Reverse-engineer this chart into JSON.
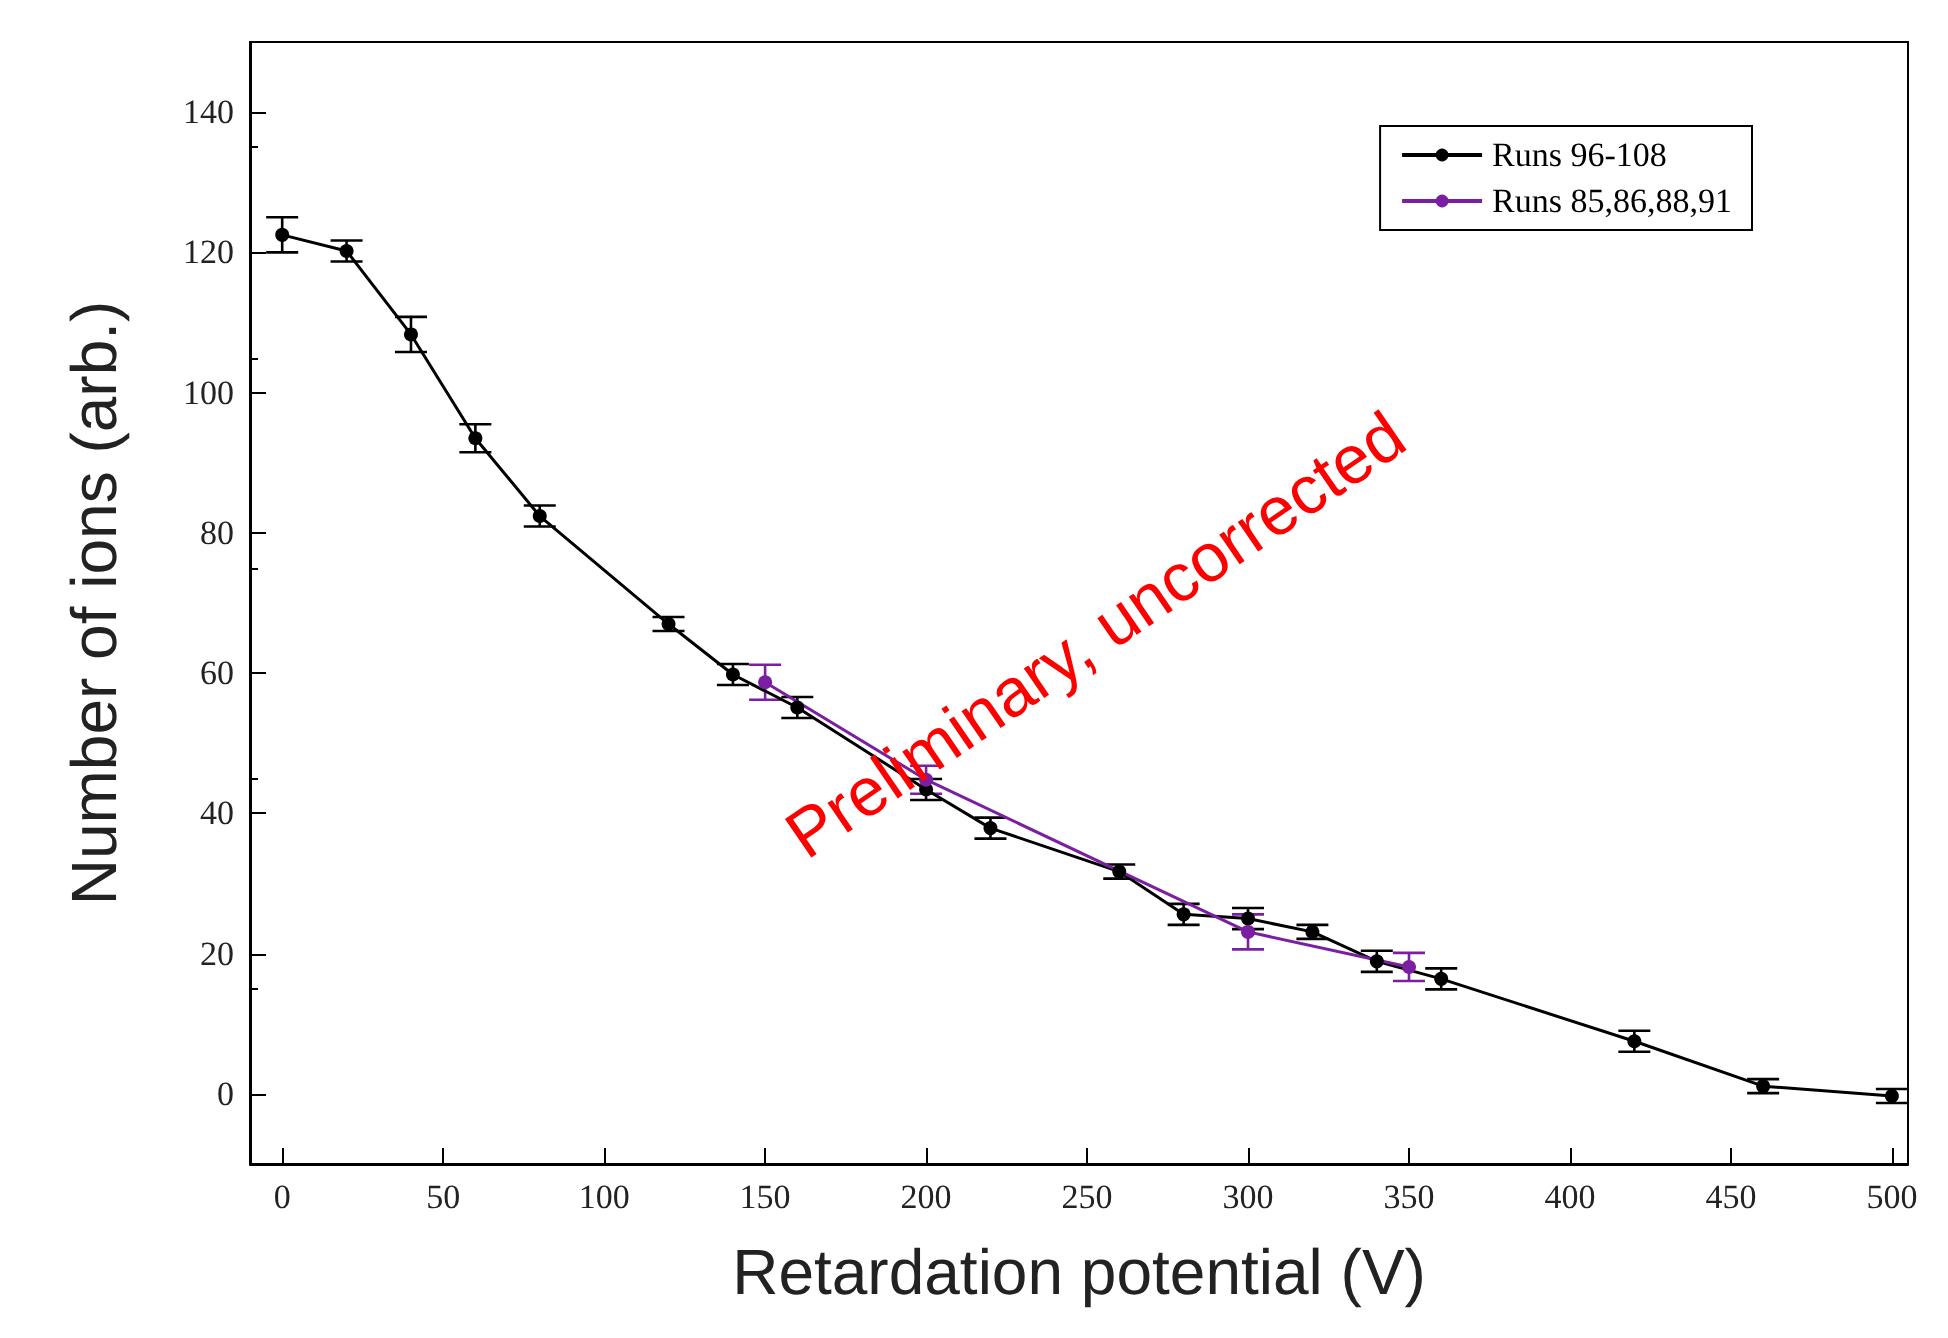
{
  "chart_data": {
    "type": "line",
    "xlabel": "Retardation potential (V)",
    "ylabel": "Number of ions (arb.)",
    "annotations": [
      "Preliminary, uncorrected"
    ],
    "xlim": [
      -10,
      505
    ],
    "xticks": [
      0,
      50,
      100,
      150,
      200,
      250,
      300,
      350,
      400,
      450,
      500
    ],
    "ylim": [
      -10,
      150
    ],
    "yticks": [
      0,
      20,
      40,
      60,
      80,
      100,
      120,
      140
    ],
    "grid": false,
    "legend": "top right",
    "marker": "circle",
    "line_style": "solid",
    "series": [
      {
        "name": "Runs 96-108",
        "color": "#000000",
        "x": [
          0,
          20,
          40,
          60,
          80,
          120,
          140,
          160,
          200,
          220,
          260,
          280,
          300,
          320,
          340,
          360,
          420,
          460,
          500
        ],
        "values": [
          122.5,
          120.2,
          108.3,
          93.5,
          82.4,
          67,
          59.8,
          55.1,
          43.4,
          37.9,
          31.7,
          25.6,
          25,
          23.1,
          18.9,
          16.4,
          7.5,
          1.1,
          -0.3
        ],
        "errors": [
          2.5,
          1.5,
          2.5,
          2,
          1.5,
          1,
          1.5,
          1.5,
          1.5,
          1.5,
          1,
          1.5,
          1.5,
          1,
          1.5,
          1.5,
          1.5,
          1,
          1
        ]
      },
      {
        "name": "Runs 85,86,88,91",
        "color": "#7b1fa2",
        "x": [
          150,
          200,
          300,
          350
        ],
        "values": [
          58.7,
          44.8,
          23.1,
          18.1
        ],
        "errors": [
          2.5,
          2,
          2.5,
          2
        ]
      }
    ]
  }
}
